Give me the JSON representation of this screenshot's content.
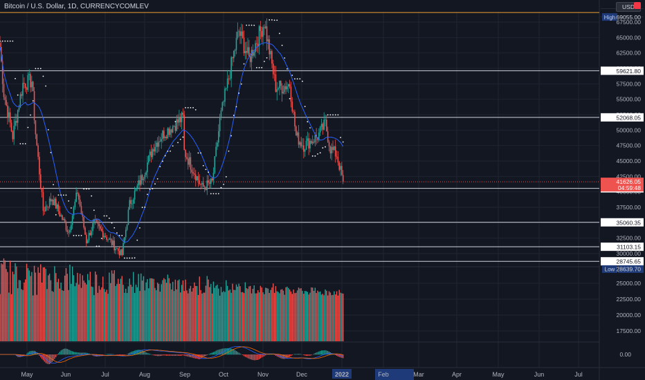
{
  "header": {
    "title": "Bitcoin / U.S. Dollar, 1D, CURRENCYCOMLEV",
    "currency": "USD"
  },
  "colors": {
    "bg": "#131722",
    "up": "#26a69a",
    "down": "#ef5350",
    "ma": "#2962ff",
    "grid": "#1f2430",
    "text": "#b2b5be"
  },
  "chart_data": {
    "type": "candlestick",
    "price_axis": {
      "range": [
        29250,
        69850
      ],
      "ticks": [
        30000,
        32500,
        35000,
        37500,
        40000,
        42500,
        45000,
        47500,
        50000,
        52500,
        55000,
        57500,
        60000,
        62500,
        65000,
        67500
      ]
    },
    "volume_axis": {
      "range": [
        15000,
        34000
      ],
      "ticks": [
        17500,
        20000,
        22500,
        25000
      ]
    },
    "oscillator_axis": {
      "ticks": [
        0.0
      ]
    },
    "time_axis": {
      "labels": [
        "May",
        "Jun",
        "Jul",
        "Aug",
        "Sep",
        "Oct",
        "Nov",
        "Dec",
        "2022",
        "Feb",
        "Mar",
        "Apr",
        "May",
        "Jun",
        "Jul"
      ]
    },
    "horizontal_levels": [
      69055.0,
      59621.8,
      52068.05,
      40567.5,
      35060.35,
      31103.15,
      28745.65
    ],
    "markers": [
      {
        "name": "High",
        "value": 69055.0,
        "label": "69055.00"
      },
      {
        "name": "Low",
        "value": 28639.7,
        "label": "28639.70"
      },
      {
        "name": "last",
        "value": 41626.05,
        "label": "41626.05",
        "countdown": "04:59:48"
      }
    ],
    "price_path": {
      "start": "2021-04-15",
      "end": "2022-01-10",
      "keypoints": [
        [
          "2021-04-15",
          63500
        ],
        [
          "2021-04-18",
          56000
        ],
        [
          "2021-04-25",
          49000
        ],
        [
          "2021-05-03",
          57500
        ],
        [
          "2021-05-10",
          58000
        ],
        [
          "2021-05-13",
          49500
        ],
        [
          "2021-05-19",
          37000
        ],
        [
          "2021-05-26",
          39000
        ],
        [
          "2021-06-08",
          33500
        ],
        [
          "2021-06-15",
          40000
        ],
        [
          "2021-06-22",
          32000
        ],
        [
          "2021-06-28",
          35000
        ],
        [
          "2021-07-20",
          29800
        ],
        [
          "2021-07-26",
          38000
        ],
        [
          "2021-08-06",
          43000
        ],
        [
          "2021-08-14",
          47500
        ],
        [
          "2021-08-22",
          49500
        ],
        [
          "2021-09-06",
          52000
        ],
        [
          "2021-09-07",
          46500
        ],
        [
          "2021-09-21",
          40700
        ],
        [
          "2021-09-29",
          41500
        ],
        [
          "2021-10-05",
          51500
        ],
        [
          "2021-10-15",
          61500
        ],
        [
          "2021-10-20",
          66000
        ],
        [
          "2021-10-28",
          61500
        ],
        [
          "2021-11-09",
          67500
        ],
        [
          "2021-11-18",
          57000
        ],
        [
          "2021-11-23",
          57000
        ],
        [
          "2021-11-29",
          57500
        ],
        [
          "2021-12-04",
          49000
        ],
        [
          "2021-12-10",
          47500
        ],
        [
          "2021-12-21",
          49000
        ],
        [
          "2021-12-27",
          51000
        ],
        [
          "2021-12-31",
          47000
        ],
        [
          "2022-01-05",
          46000
        ],
        [
          "2022-01-10",
          41626
        ]
      ]
    },
    "volume_range": [
      17500,
      29500
    ]
  }
}
